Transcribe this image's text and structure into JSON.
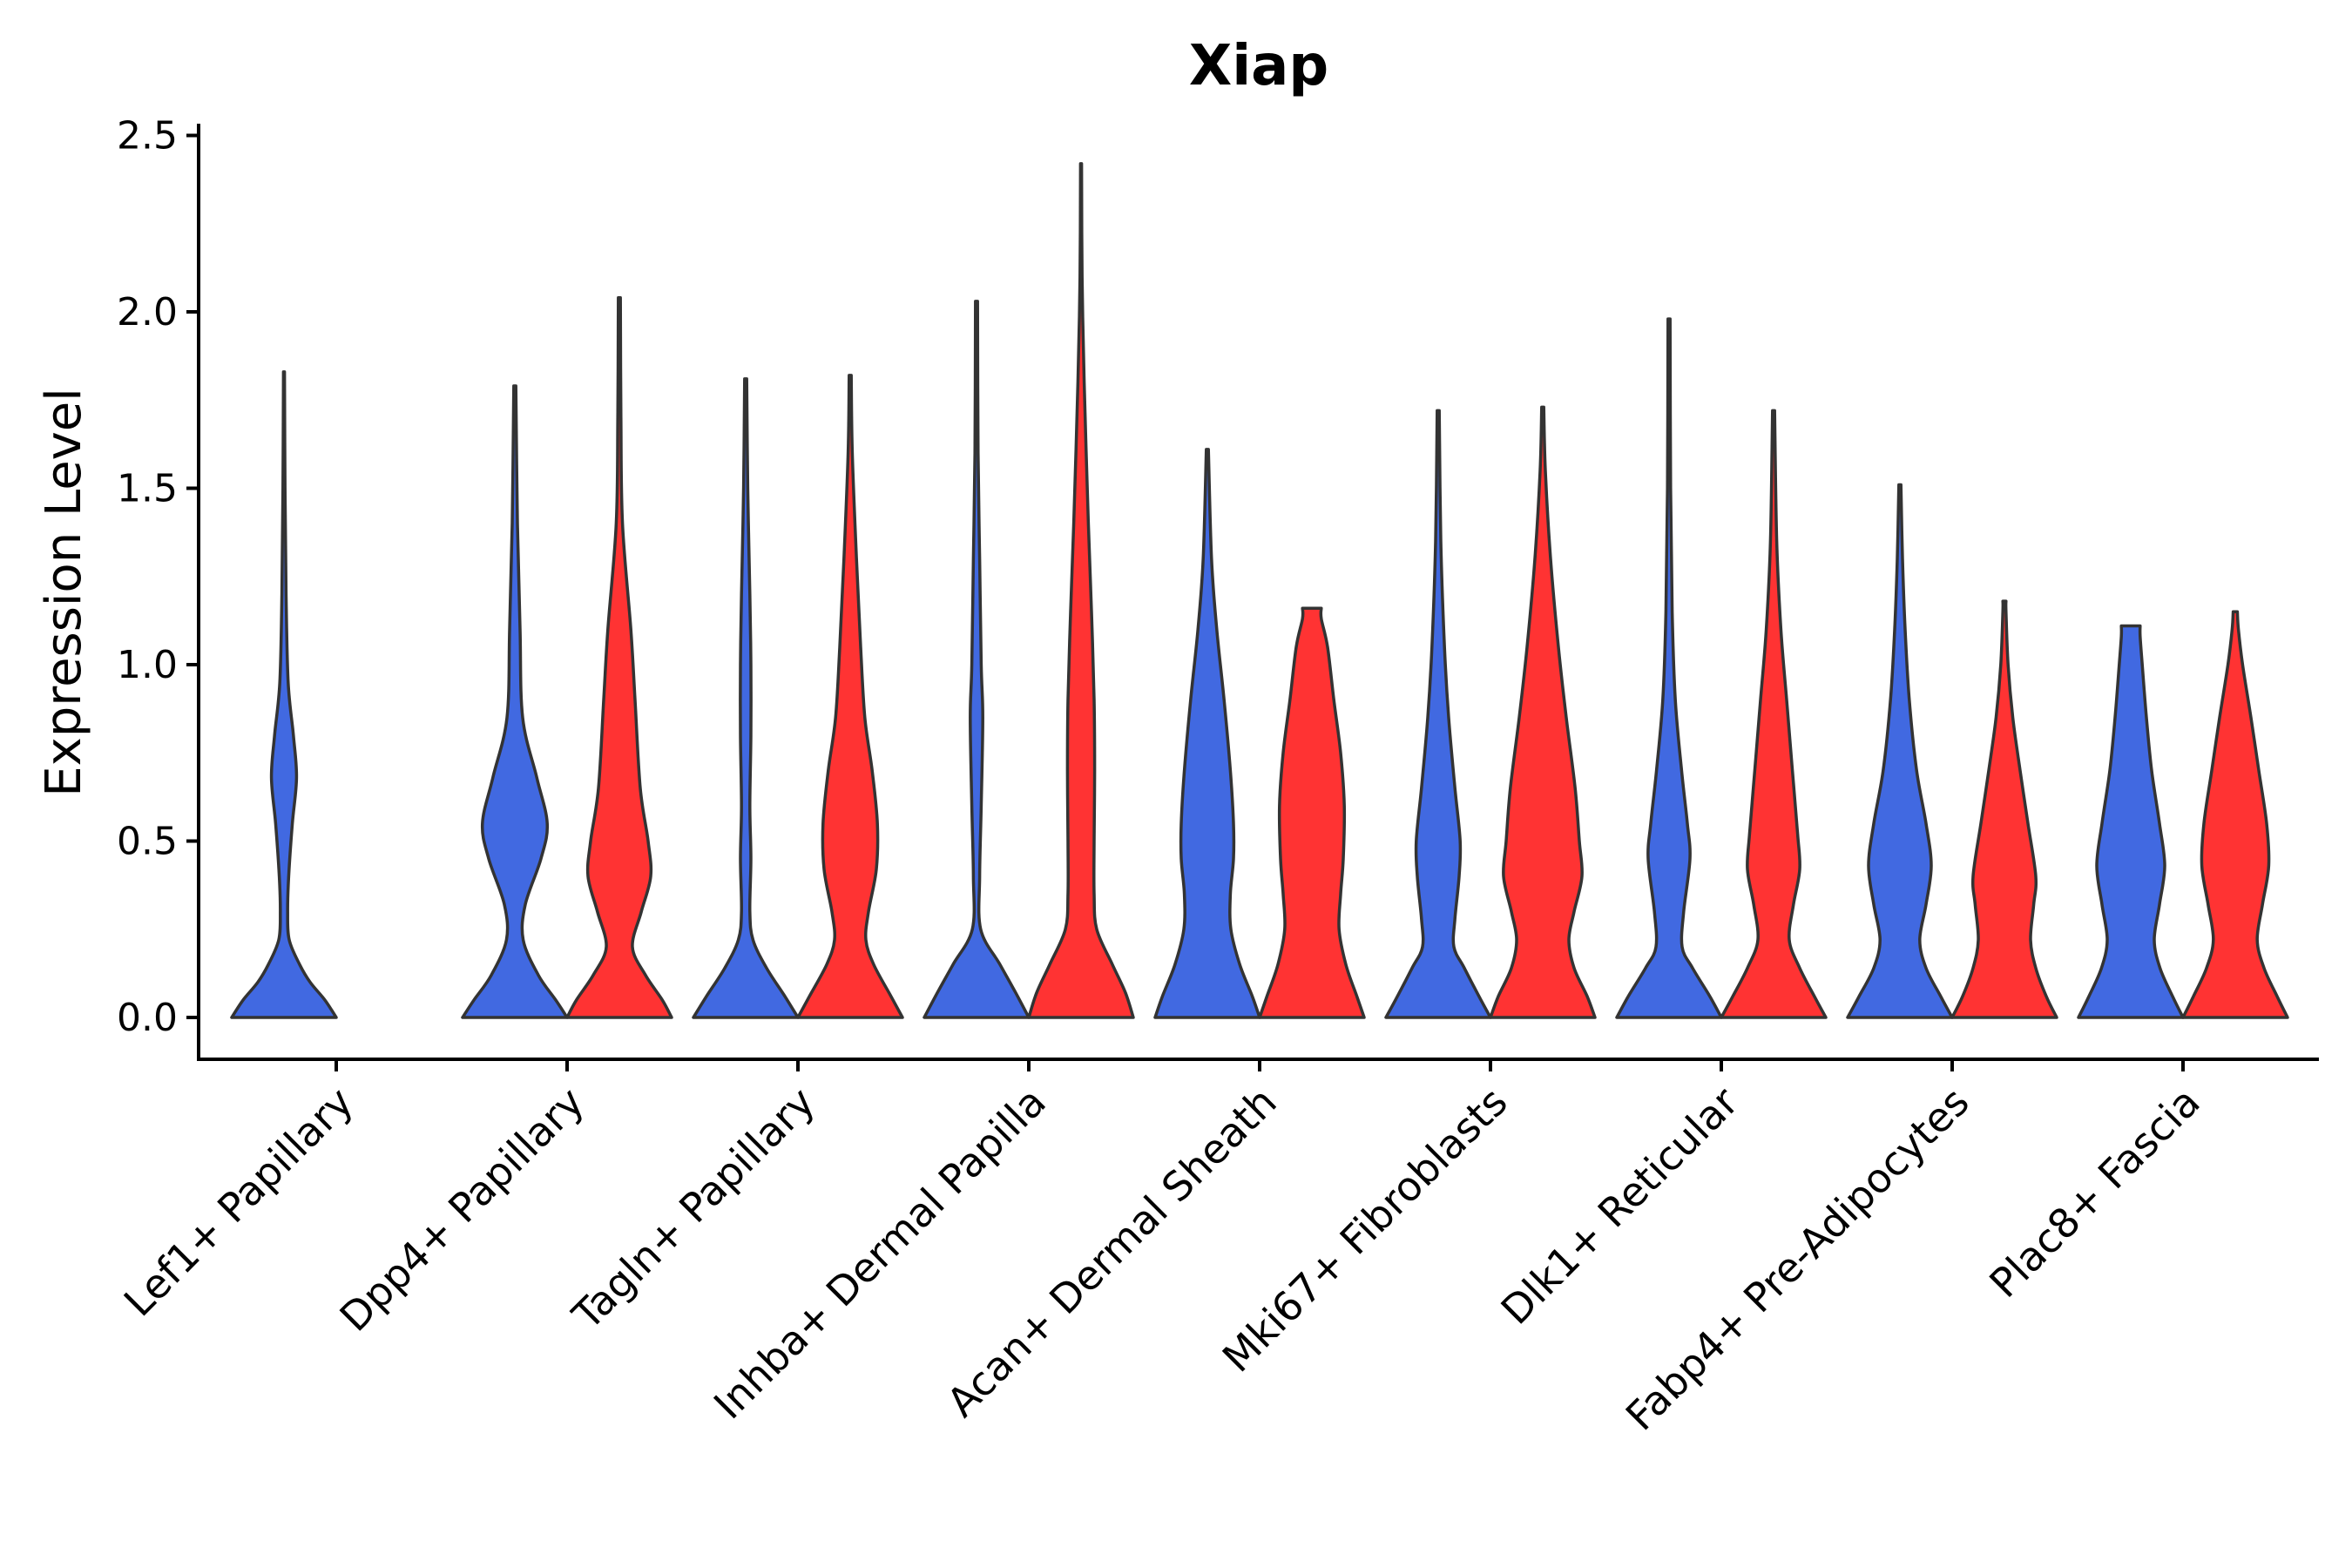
{
  "chart_data": {
    "type": "violin",
    "title": "Xiap",
    "xlabel": "",
    "ylabel": "Expression Level",
    "ylim": [
      -0.12,
      2.55
    ],
    "yticks": [
      "0.0",
      "0.5",
      "1.0",
      "1.5",
      "2.0",
      "2.5"
    ],
    "ytick_values": [
      0,
      0.5,
      1.0,
      1.5,
      2.0,
      2.5
    ],
    "series_colors": [
      "#4169E1",
      "#FF3333"
    ],
    "categories": [
      "Lef1+ Papillary",
      "Dpp4+ Papillary",
      "Tagln+ Papillary",
      "Inhba+ Dermal Papilla",
      "Acan+ Dermal Sheath",
      "Mki67+ Fibroblasts",
      "Dlk1+ Reticular",
      "Fabp4+ Pre-Adipocytes",
      "Plac8+ Fascia"
    ],
    "violins": [
      {
        "category": "Lef1+ Papillary",
        "group": 0,
        "max": 1.83,
        "profile": [
          [
            0,
            1
          ],
          [
            0.05,
            0.78
          ],
          [
            0.1,
            0.5
          ],
          [
            0.15,
            0.3
          ],
          [
            0.22,
            0.1
          ],
          [
            0.3,
            0.07
          ],
          [
            0.4,
            0.09
          ],
          [
            0.55,
            0.16
          ],
          [
            0.68,
            0.24
          ],
          [
            0.8,
            0.18
          ],
          [
            0.95,
            0.08
          ],
          [
            1.2,
            0.04
          ],
          [
            1.5,
            0.02
          ],
          [
            1.83,
            0.01
          ]
        ]
      },
      {
        "category": "Dpp4+ Papillary",
        "group": 0,
        "max": 1.79,
        "profile": [
          [
            0,
            1
          ],
          [
            0.05,
            0.78
          ],
          [
            0.12,
            0.45
          ],
          [
            0.22,
            0.16
          ],
          [
            0.32,
            0.2
          ],
          [
            0.45,
            0.5
          ],
          [
            0.55,
            0.62
          ],
          [
            0.68,
            0.42
          ],
          [
            0.85,
            0.15
          ],
          [
            1.1,
            0.1
          ],
          [
            1.4,
            0.05
          ],
          [
            1.79,
            0.02
          ]
        ]
      },
      {
        "category": "Dpp4+ Papillary",
        "group": 1,
        "max": 2.04,
        "profile": [
          [
            0,
            1
          ],
          [
            0.05,
            0.82
          ],
          [
            0.12,
            0.5
          ],
          [
            0.2,
            0.25
          ],
          [
            0.3,
            0.42
          ],
          [
            0.4,
            0.6
          ],
          [
            0.5,
            0.55
          ],
          [
            0.65,
            0.4
          ],
          [
            0.9,
            0.3
          ],
          [
            1.1,
            0.22
          ],
          [
            1.4,
            0.06
          ],
          [
            1.7,
            0.03
          ],
          [
            2.04,
            0.02
          ]
        ]
      },
      {
        "category": "Tagln+ Papillary",
        "group": 0,
        "max": 1.81,
        "profile": [
          [
            0,
            1
          ],
          [
            0.06,
            0.75
          ],
          [
            0.14,
            0.4
          ],
          [
            0.22,
            0.14
          ],
          [
            0.3,
            0.08
          ],
          [
            0.45,
            0.1
          ],
          [
            0.6,
            0.08
          ],
          [
            0.8,
            0.1
          ],
          [
            1.0,
            0.1
          ],
          [
            1.2,
            0.08
          ],
          [
            1.5,
            0.04
          ],
          [
            1.81,
            0.02
          ]
        ]
      },
      {
        "category": "Tagln+ Papillary",
        "group": 1,
        "max": 1.82,
        "profile": [
          [
            0,
            1
          ],
          [
            0.06,
            0.78
          ],
          [
            0.15,
            0.45
          ],
          [
            0.22,
            0.3
          ],
          [
            0.3,
            0.35
          ],
          [
            0.42,
            0.5
          ],
          [
            0.55,
            0.52
          ],
          [
            0.7,
            0.42
          ],
          [
            0.85,
            0.28
          ],
          [
            1.05,
            0.2
          ],
          [
            1.3,
            0.12
          ],
          [
            1.6,
            0.04
          ],
          [
            1.82,
            0.02
          ]
        ]
      },
      {
        "category": "Inhba+ Dermal Papilla",
        "group": 0,
        "max": 2.03,
        "profile": [
          [
            0,
            1
          ],
          [
            0.07,
            0.75
          ],
          [
            0.15,
            0.45
          ],
          [
            0.25,
            0.08
          ],
          [
            0.4,
            0.06
          ],
          [
            0.6,
            0.09
          ],
          [
            0.85,
            0.12
          ],
          [
            1.0,
            0.09
          ],
          [
            1.3,
            0.06
          ],
          [
            1.6,
            0.03
          ],
          [
            2.03,
            0.02
          ]
        ]
      },
      {
        "category": "Inhba+ Dermal Papilla",
        "group": 1,
        "max": 2.42,
        "profile": [
          [
            0,
            1
          ],
          [
            0.07,
            0.85
          ],
          [
            0.15,
            0.6
          ],
          [
            0.25,
            0.3
          ],
          [
            0.35,
            0.25
          ],
          [
            0.5,
            0.25
          ],
          [
            0.7,
            0.26
          ],
          [
            0.9,
            0.25
          ],
          [
            1.15,
            0.2
          ],
          [
            1.4,
            0.14
          ],
          [
            1.8,
            0.06
          ],
          [
            2.1,
            0.02
          ],
          [
            2.42,
            0.01
          ]
        ]
      },
      {
        "category": "Acan+ Dermal Sheath",
        "group": 0,
        "max": 1.61,
        "profile": [
          [
            0,
            1
          ],
          [
            0.06,
            0.86
          ],
          [
            0.15,
            0.62
          ],
          [
            0.25,
            0.45
          ],
          [
            0.35,
            0.44
          ],
          [
            0.45,
            0.5
          ],
          [
            0.55,
            0.5
          ],
          [
            0.7,
            0.44
          ],
          [
            0.9,
            0.32
          ],
          [
            1.1,
            0.18
          ],
          [
            1.3,
            0.08
          ],
          [
            1.61,
            0.02
          ]
        ]
      },
      {
        "category": "Acan+ Dermal Sheath",
        "group": 1,
        "max": 1.16,
        "profile": [
          [
            0,
            1
          ],
          [
            0.06,
            0.86
          ],
          [
            0.15,
            0.65
          ],
          [
            0.25,
            0.52
          ],
          [
            0.35,
            0.55
          ],
          [
            0.45,
            0.6
          ],
          [
            0.6,
            0.62
          ],
          [
            0.75,
            0.55
          ],
          [
            0.9,
            0.42
          ],
          [
            1.05,
            0.3
          ],
          [
            1.13,
            0.18
          ],
          [
            1.16,
            0.18
          ]
        ]
      },
      {
        "category": "Mki67+ Fibroblasts",
        "group": 0,
        "max": 1.72,
        "profile": [
          [
            0,
            1
          ],
          [
            0.06,
            0.78
          ],
          [
            0.14,
            0.5
          ],
          [
            0.2,
            0.3
          ],
          [
            0.28,
            0.32
          ],
          [
            0.4,
            0.4
          ],
          [
            0.5,
            0.42
          ],
          [
            0.65,
            0.32
          ],
          [
            0.85,
            0.2
          ],
          [
            1.05,
            0.12
          ],
          [
            1.35,
            0.05
          ],
          [
            1.72,
            0.02
          ]
        ]
      },
      {
        "category": "Mki67+ Fibroblasts",
        "group": 1,
        "max": 1.73,
        "profile": [
          [
            0,
            1
          ],
          [
            0.06,
            0.85
          ],
          [
            0.14,
            0.6
          ],
          [
            0.22,
            0.5
          ],
          [
            0.3,
            0.6
          ],
          [
            0.4,
            0.75
          ],
          [
            0.5,
            0.7
          ],
          [
            0.65,
            0.62
          ],
          [
            0.85,
            0.45
          ],
          [
            1.05,
            0.3
          ],
          [
            1.3,
            0.15
          ],
          [
            1.55,
            0.05
          ],
          [
            1.73,
            0.02
          ]
        ]
      },
      {
        "category": "Dlk1+ Reticular",
        "group": 0,
        "max": 1.98,
        "profile": [
          [
            0,
            1
          ],
          [
            0.06,
            0.78
          ],
          [
            0.14,
            0.45
          ],
          [
            0.2,
            0.25
          ],
          [
            0.3,
            0.28
          ],
          [
            0.45,
            0.4
          ],
          [
            0.55,
            0.35
          ],
          [
            0.7,
            0.24
          ],
          [
            0.9,
            0.12
          ],
          [
            1.15,
            0.06
          ],
          [
            1.5,
            0.03
          ],
          [
            1.98,
            0.02
          ]
        ]
      },
      {
        "category": "Dlk1+ Reticular",
        "group": 1,
        "max": 1.72,
        "profile": [
          [
            0,
            1
          ],
          [
            0.06,
            0.78
          ],
          [
            0.14,
            0.5
          ],
          [
            0.22,
            0.3
          ],
          [
            0.32,
            0.38
          ],
          [
            0.42,
            0.5
          ],
          [
            0.52,
            0.46
          ],
          [
            0.7,
            0.36
          ],
          [
            0.9,
            0.25
          ],
          [
            1.1,
            0.14
          ],
          [
            1.35,
            0.06
          ],
          [
            1.72,
            0.02
          ]
        ]
      },
      {
        "category": "Fabp4+ Pre-Adipocytes",
        "group": 0,
        "max": 1.51,
        "profile": [
          [
            0,
            1
          ],
          [
            0.06,
            0.78
          ],
          [
            0.14,
            0.5
          ],
          [
            0.22,
            0.38
          ],
          [
            0.32,
            0.5
          ],
          [
            0.43,
            0.6
          ],
          [
            0.55,
            0.5
          ],
          [
            0.7,
            0.32
          ],
          [
            0.9,
            0.18
          ],
          [
            1.1,
            0.1
          ],
          [
            1.3,
            0.05
          ],
          [
            1.51,
            0.02
          ]
        ]
      },
      {
        "category": "Fabp4+ Pre-Adipocytes",
        "group": 1,
        "max": 1.18,
        "profile": [
          [
            0,
            1
          ],
          [
            0.06,
            0.8
          ],
          [
            0.14,
            0.6
          ],
          [
            0.22,
            0.5
          ],
          [
            0.32,
            0.56
          ],
          [
            0.4,
            0.6
          ],
          [
            0.55,
            0.45
          ],
          [
            0.7,
            0.3
          ],
          [
            0.85,
            0.16
          ],
          [
            1.0,
            0.07
          ],
          [
            1.15,
            0.03
          ],
          [
            1.18,
            0.03
          ]
        ]
      },
      {
        "category": "Plac8+ Fascia",
        "group": 0,
        "max": 1.11,
        "profile": [
          [
            0,
            1
          ],
          [
            0.06,
            0.8
          ],
          [
            0.14,
            0.56
          ],
          [
            0.22,
            0.45
          ],
          [
            0.32,
            0.55
          ],
          [
            0.43,
            0.65
          ],
          [
            0.55,
            0.55
          ],
          [
            0.7,
            0.4
          ],
          [
            0.85,
            0.3
          ],
          [
            1.0,
            0.22
          ],
          [
            1.08,
            0.18
          ],
          [
            1.11,
            0.18
          ]
        ]
      },
      {
        "category": "Plac8+ Fascia",
        "group": 1,
        "max": 1.15,
        "profile": [
          [
            0,
            1
          ],
          [
            0.06,
            0.8
          ],
          [
            0.14,
            0.55
          ],
          [
            0.22,
            0.42
          ],
          [
            0.32,
            0.52
          ],
          [
            0.43,
            0.64
          ],
          [
            0.55,
            0.6
          ],
          [
            0.7,
            0.45
          ],
          [
            0.85,
            0.3
          ],
          [
            1.0,
            0.14
          ],
          [
            1.1,
            0.06
          ],
          [
            1.15,
            0.04
          ]
        ]
      }
    ]
  }
}
